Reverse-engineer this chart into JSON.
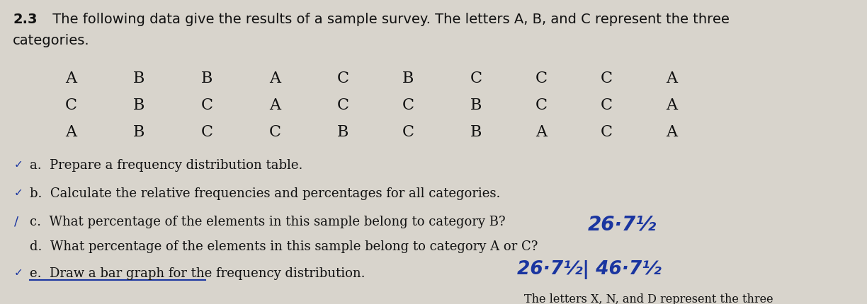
{
  "title_bold": "2.3",
  "title_text": "  The following data give the results of a sample survey. The letters A, B, and C represent the three\ncategories.",
  "data_rows": [
    [
      "A",
      "B",
      "B",
      "A",
      "C",
      "B",
      "C",
      "C",
      "C",
      "A"
    ],
    [
      "C",
      "B",
      "C",
      "A",
      "C",
      "C",
      "B",
      "C",
      "C",
      "A"
    ],
    [
      "A",
      "B",
      "C",
      "C",
      "B",
      "C",
      "B",
      "A",
      "C",
      "A"
    ]
  ],
  "questions": [
    "a.  Prepare a frequency distribution table.",
    "b.  Calculate the relative frequencies and percentages for all categories.",
    "c.  What percentage of the elements in this sample belong to category B?",
    "d.  What percentage of the elements in this sample belong to category A or C?",
    "e.  Draw a bar graph for the frequency distribution."
  ],
  "handwritten_c": "26·7½",
  "handwritten_e": "26·7½| 46·7½",
  "bottom_text": "The letters X, N, and D represent the three",
  "bg_color": "#d8d4cc",
  "text_color": "#111111",
  "hand_color": "#1a35a0",
  "font_size_title": 14,
  "font_size_data": 16,
  "font_size_q": 13
}
